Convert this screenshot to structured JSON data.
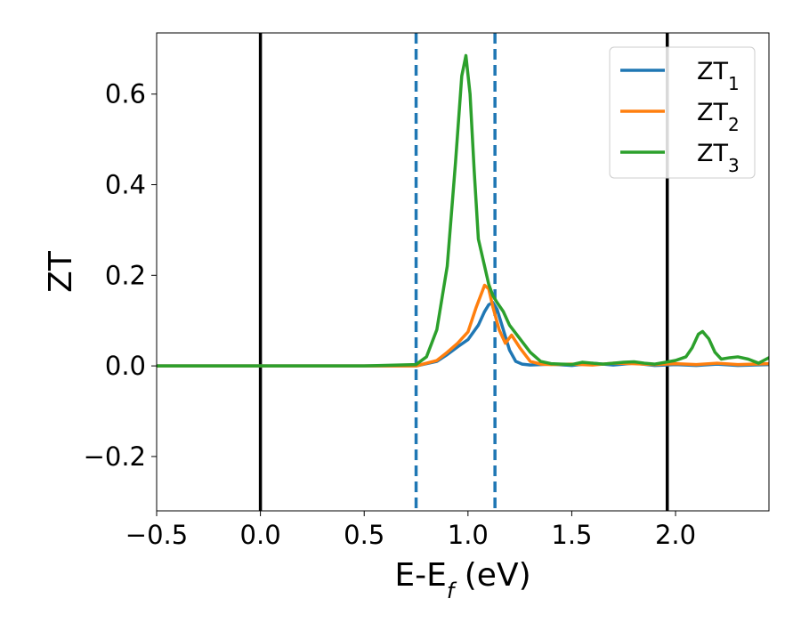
{
  "chart_data": {
    "type": "line",
    "xlabel": "E-E",
    "xlabel_sub": "f",
    "xlabel_unit": " (eV)",
    "ylabel": "ZT",
    "xlim": [
      -0.5,
      2.45
    ],
    "ylim": [
      -0.32,
      0.735
    ],
    "xticks": [
      -0.5,
      0.0,
      0.5,
      1.0,
      1.5,
      2.0
    ],
    "xtick_labels": [
      "−0.5",
      "0.0",
      "0.5",
      "1.0",
      "1.5",
      "2.0"
    ],
    "yticks": [
      -0.2,
      0.0,
      0.2,
      0.4,
      0.6
    ],
    "ytick_labels": [
      "−0.2",
      "0.0",
      "0.2",
      "0.4",
      "0.6"
    ],
    "grid": false,
    "legend_position": "top-right",
    "vlines": [
      {
        "x": 0.0,
        "style": "solid",
        "color": "#000000"
      },
      {
        "x": 1.96,
        "style": "solid",
        "color": "#000000"
      },
      {
        "x": 0.75,
        "style": "dashed",
        "color": "#1f77b4"
      },
      {
        "x": 1.13,
        "style": "dashed",
        "color": "#1f77b4"
      }
    ],
    "series": [
      {
        "name": "ZT",
        "sub": "1",
        "color": "#1f77b4",
        "x": [
          -0.5,
          0.0,
          0.5,
          0.75,
          0.85,
          0.9,
          0.95,
          1.0,
          1.05,
          1.08,
          1.1,
          1.12,
          1.14,
          1.17,
          1.2,
          1.23,
          1.26,
          1.3,
          1.4,
          1.5,
          1.6,
          1.7,
          1.8,
          1.9,
          2.0,
          2.1,
          2.2,
          2.3,
          2.45
        ],
        "y": [
          0.0,
          0.0,
          0.0,
          0.0,
          0.01,
          0.025,
          0.042,
          0.058,
          0.09,
          0.12,
          0.135,
          0.14,
          0.125,
          0.08,
          0.035,
          0.01,
          0.004,
          0.002,
          0.004,
          0.001,
          0.006,
          0.002,
          0.006,
          0.001,
          0.003,
          0.001,
          0.004,
          0.001,
          0.003
        ]
      },
      {
        "name": "ZT",
        "sub": "2",
        "color": "#ff7f0e",
        "x": [
          -0.5,
          0.0,
          0.5,
          0.75,
          0.85,
          0.9,
          0.95,
          1.0,
          1.04,
          1.08,
          1.1,
          1.12,
          1.15,
          1.18,
          1.21,
          1.25,
          1.3,
          1.35,
          1.4,
          1.5,
          1.6,
          1.7,
          1.8,
          1.9,
          2.0,
          2.1,
          2.2,
          2.3,
          2.45
        ],
        "y": [
          0.0,
          0.0,
          0.0,
          0.0,
          0.012,
          0.03,
          0.05,
          0.075,
          0.13,
          0.178,
          0.17,
          0.13,
          0.08,
          0.05,
          0.068,
          0.04,
          0.01,
          0.004,
          0.003,
          0.004,
          0.002,
          0.006,
          0.005,
          0.003,
          0.005,
          0.003,
          0.006,
          0.003,
          0.005
        ]
      },
      {
        "name": "ZT",
        "sub": "3",
        "color": "#2ca02c",
        "x": [
          -0.5,
          0.0,
          0.5,
          0.75,
          0.8,
          0.85,
          0.9,
          0.94,
          0.97,
          0.99,
          1.01,
          1.03,
          1.05,
          1.08,
          1.1,
          1.12,
          1.14,
          1.17,
          1.2,
          1.25,
          1.3,
          1.35,
          1.4,
          1.45,
          1.5,
          1.55,
          1.6,
          1.65,
          1.7,
          1.75,
          1.8,
          1.85,
          1.9,
          1.95,
          2.0,
          2.05,
          2.08,
          2.11,
          2.13,
          2.16,
          2.19,
          2.22,
          2.26,
          2.3,
          2.35,
          2.4,
          2.45
        ],
        "y": [
          0.0,
          0.0,
          0.0,
          0.003,
          0.02,
          0.08,
          0.22,
          0.45,
          0.64,
          0.685,
          0.6,
          0.43,
          0.28,
          0.22,
          0.18,
          0.155,
          0.14,
          0.12,
          0.09,
          0.06,
          0.03,
          0.01,
          0.005,
          0.004,
          0.003,
          0.008,
          0.006,
          0.004,
          0.006,
          0.008,
          0.009,
          0.006,
          0.004,
          0.008,
          0.012,
          0.02,
          0.04,
          0.07,
          0.076,
          0.06,
          0.03,
          0.015,
          0.018,
          0.02,
          0.015,
          0.006,
          0.018
        ]
      }
    ]
  }
}
